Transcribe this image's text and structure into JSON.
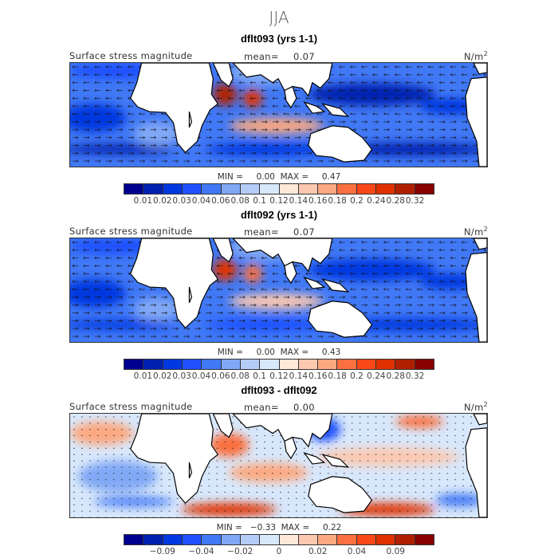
{
  "title": "JJA",
  "colors": [
    "#000090",
    "#0020b0",
    "#0038e0",
    "#1e50ff",
    "#4078f5",
    "#80a8f5",
    "#b4ccf8",
    "#d8e8fc",
    "#ffe8d8",
    "#fcc8b0",
    "#fca880",
    "#fa7040",
    "#f84818",
    "#e03000",
    "#b02000",
    "#880000"
  ],
  "panels": [
    {
      "title": "dflt093 (yrs 1-1)",
      "variable": "Surface stress magnitude",
      "mean_label": "mean=",
      "mean": "0.07",
      "units": "N/m",
      "units_sup": "2",
      "minmax": "MIN =     0.00  MAX =     0.47",
      "ticks": [
        "0.01",
        "0.02",
        "0.03",
        "0.04",
        "0.06",
        "0.08",
        "0.1",
        "0.12",
        "0.14",
        "0.16",
        "0.18",
        "0.2",
        "0.24",
        "0.28",
        "0.32"
      ]
    },
    {
      "title": "dflt092 (yrs 1-1)",
      "variable": "Surface stress magnitude",
      "mean_label": "mean=",
      "mean": "0.07",
      "units": "N/m",
      "units_sup": "2",
      "minmax": "MIN =     0.00  MAX =     0.43",
      "ticks": [
        "0.01",
        "0.02",
        "0.03",
        "0.04",
        "0.06",
        "0.08",
        "0.1",
        "0.12",
        "0.14",
        "0.16",
        "0.18",
        "0.2",
        "0.24",
        "0.28",
        "0.32"
      ]
    },
    {
      "title": "dflt093 - dflt092",
      "variable": "Surface stress magnitude",
      "mean_label": "mean=",
      "mean": "0.00",
      "units": "N/m",
      "units_sup": "2",
      "minmax": "MIN =   −0.33  MAX =     0.22",
      "ticks": [
        "−0.09",
        "−0.04",
        "−0.02",
        "0",
        "0.02",
        "0.04",
        "0.09"
      ]
    }
  ]
}
